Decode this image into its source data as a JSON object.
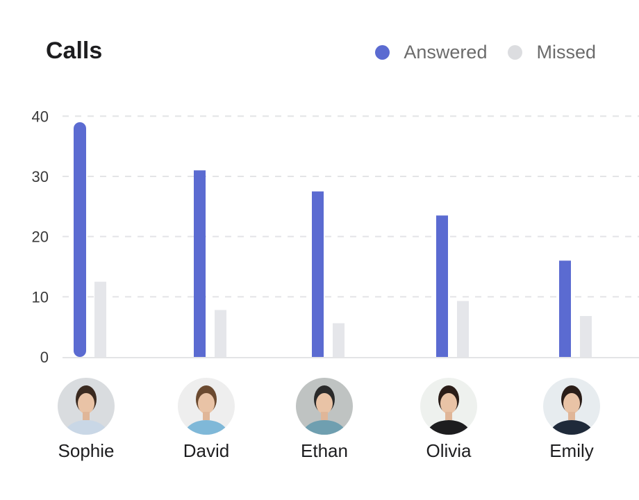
{
  "chart_data": {
    "type": "bar",
    "title": "Calls",
    "categories": [
      "Sophie",
      "David",
      "Ethan",
      "Olivia",
      "Emily"
    ],
    "series": [
      {
        "name": "Answered",
        "color": "#5b6bd1",
        "values": [
          39,
          31,
          27.5,
          23.5,
          16
        ]
      },
      {
        "name": "Missed",
        "color": "#e5e6ea",
        "values": [
          12.5,
          7.8,
          5.6,
          9.3,
          6.8
        ]
      }
    ],
    "yticks": [
      0,
      10,
      20,
      30,
      40
    ],
    "ylim": [
      0,
      40
    ],
    "grid": true,
    "legend": "top-right",
    "category_avatars": true
  }
}
